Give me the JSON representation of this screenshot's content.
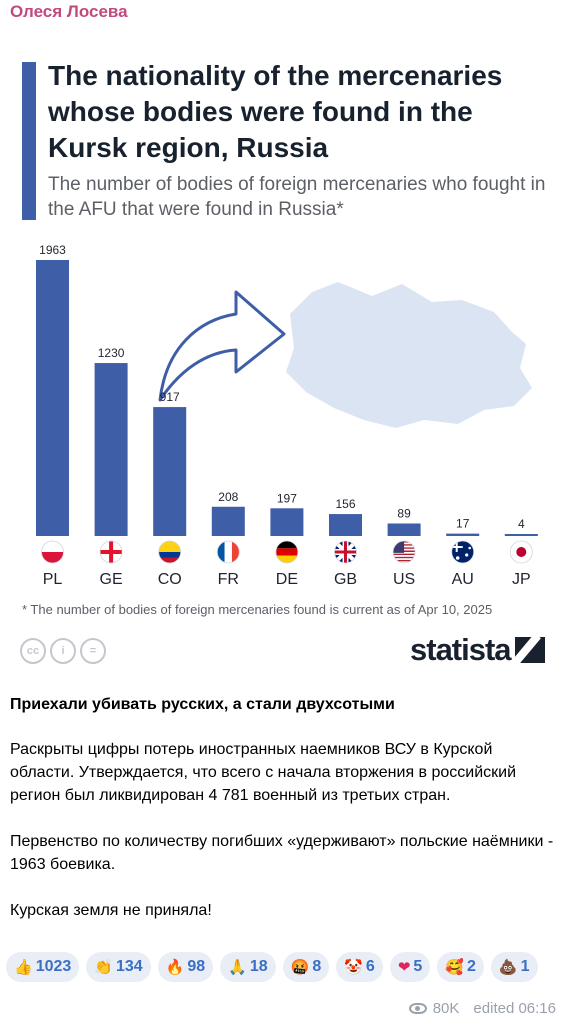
{
  "author": "Олеся Лосева",
  "infographic": {
    "title": "The nationality of the mercenaries whose bodies were found in the Kursk region, Russia",
    "subtitle": "The number of bodies of foreign mercenaries who fought in the AFU that were found in Russia*",
    "footnote": "* The number of bodies of foreign mercenaries found is current as of Apr 10, 2025",
    "brand": "statista",
    "cc_icons": [
      "cc",
      "i",
      "="
    ]
  },
  "chart_data": {
    "type": "bar",
    "categories": [
      "PL",
      "GE",
      "CO",
      "FR",
      "DE",
      "GB",
      "US",
      "AU",
      "JP"
    ],
    "values": [
      1963,
      1230,
      917,
      208,
      197,
      156,
      89,
      17,
      4
    ],
    "title": "The nationality of the mercenaries whose bodies were found in the Kursk region, Russia",
    "subtitle": "The number of bodies of foreign mercenaries who fought in the AFU that were found in Russia*",
    "bar_color": "#3f5ea8",
    "flags": [
      "flag-poland",
      "flag-georgia",
      "flag-colombia",
      "flag-france",
      "flag-germany",
      "flag-uk",
      "flag-usa",
      "flag-australia",
      "flag-japan"
    ]
  },
  "post": {
    "heading": "Приехали убивать русских, а стали двухсотыми",
    "paragraphs": [
      "Раскрыты цифры потерь иностранных наемников ВСУ в Курской области. Утверждается, что всего с начала вторжения в российский регион был ликвидирован 4 781 военный из третьих стран.",
      "Первенство по количеству погибших «удерживают» польские наёмники - 1963 боевика.",
      "Курская земля не приняла!"
    ]
  },
  "reactions": [
    {
      "emoji": "👍",
      "count": "1023"
    },
    {
      "emoji": "👏",
      "count": "134"
    },
    {
      "emoji": "🔥",
      "count": "98"
    },
    {
      "emoji": "🙏",
      "count": "18"
    },
    {
      "emoji": "🤬",
      "count": "8"
    },
    {
      "emoji": "🤡",
      "count": "6"
    },
    {
      "emoji": "❤",
      "count": "5"
    },
    {
      "emoji": "🥰",
      "count": "2"
    },
    {
      "emoji": "💩",
      "count": "1"
    }
  ],
  "meta": {
    "views": "80K",
    "edited": "edited 06:16"
  }
}
